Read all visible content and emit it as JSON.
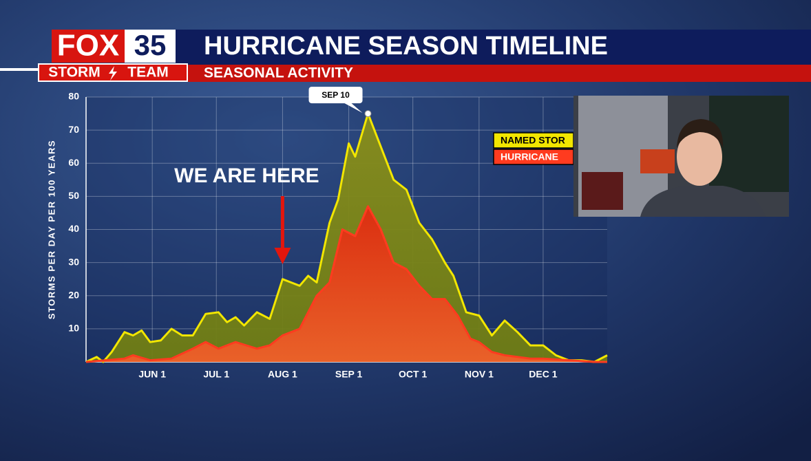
{
  "header": {
    "logo_fox": "FOX",
    "logo_num": "35",
    "logo_storm": "STORM",
    "logo_team": "TEAM",
    "title": "HURRICANE SEASON TIMELINE",
    "subtitle": "SEASONAL ACTIVITY"
  },
  "chart_data": {
    "type": "area",
    "ylabel": "STORMS PER DAY PER 100 YEARS",
    "xlim": [
      0,
      244
    ],
    "ylim": [
      0,
      80
    ],
    "xticks": [
      {
        "value": 31,
        "label": "JUN 1"
      },
      {
        "value": 61,
        "label": "JUL 1"
      },
      {
        "value": 92,
        "label": "AUG 1"
      },
      {
        "value": 123,
        "label": "SEP 1"
      },
      {
        "value": 153,
        "label": "OCT 1"
      },
      {
        "value": 184,
        "label": "NOV 1"
      },
      {
        "value": 214,
        "label": "DEC 1"
      }
    ],
    "yticks": [
      10,
      20,
      30,
      40,
      50,
      60,
      70,
      80
    ],
    "grid": true,
    "legend": "upper right",
    "series": [
      {
        "name": "NAMED STOR",
        "color": "#f2e600",
        "x": [
          0,
          5,
          8,
          12,
          18,
          22,
          26,
          30,
          35,
          40,
          45,
          50,
          56,
          62,
          66,
          70,
          74,
          80,
          86,
          92,
          96,
          100,
          104,
          108,
          114,
          118,
          123,
          126,
          132,
          138,
          144,
          150,
          156,
          162,
          168,
          172,
          178,
          184,
          190,
          196,
          202,
          208,
          214,
          220,
          226,
          232,
          238,
          244
        ],
        "values": [
          0,
          1.5,
          0,
          3,
          9,
          8,
          9.5,
          6,
          6.5,
          10,
          8,
          8,
          14.5,
          15,
          12,
          13.5,
          11,
          15,
          13,
          25,
          24,
          23,
          26,
          24,
          42,
          49,
          66,
          62,
          75,
          65,
          55,
          52,
          42,
          37,
          30,
          26,
          15,
          14,
          8,
          12.5,
          9,
          5,
          5,
          2,
          0.5,
          0.5,
          0,
          2
        ]
      },
      {
        "name": "HURRICANE",
        "color": "#ff3b1f",
        "x": [
          0,
          18,
          22,
          30,
          40,
          50,
          56,
          62,
          70,
          80,
          86,
          92,
          100,
          108,
          114,
          120,
          126,
          132,
          138,
          144,
          150,
          156,
          162,
          168,
          174,
          180,
          184,
          190,
          196,
          208,
          214,
          226,
          238,
          244
        ],
        "values": [
          0,
          1,
          2,
          0.5,
          1,
          4,
          6,
          4,
          6,
          4,
          5,
          8,
          10,
          20,
          24,
          40,
          38,
          47,
          40,
          30,
          28,
          23,
          19,
          19,
          14,
          7,
          6,
          3,
          2,
          1,
          1,
          0.5,
          0,
          0
        ]
      }
    ],
    "annotations": [
      {
        "text": "SEP 10",
        "x": 132,
        "y": 75
      },
      {
        "text": "WE ARE HERE",
        "x": 92
      }
    ]
  }
}
